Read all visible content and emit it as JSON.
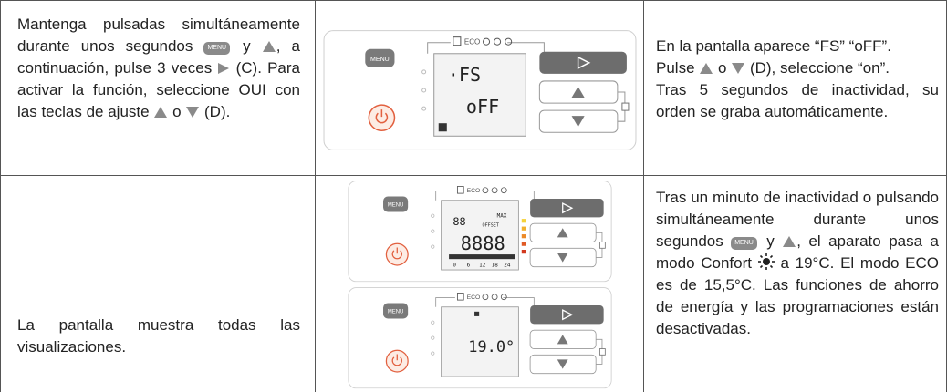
{
  "menu_label": "MENU",
  "eco_label": "ECO",
  "rows": [
    {
      "instruction": [
        "Mantenga pulsadas simultánea­mente durante unos segundos",
        "y",
        ", a continuación, pulse 3 veces",
        "(C). Para activar la función, seleccione OUI con las teclas de ajuste",
        "o",
        "(D)."
      ],
      "displays": [
        [
          "·FS",
          "oFF"
        ]
      ],
      "description": [
        [
          "En la pantalla aparece “FS” “oFF”."
        ],
        [
          "Pulse",
          "o",
          "(D), seleccione “on”."
        ],
        [
          "Tras 5 segundos de inactividad, su orden se graba automáticamente."
        ]
      ]
    },
    {
      "instruction": [
        "La pantalla muestra todas las visualizaciones."
      ],
      "displays": [
        [
          "88",
          "MAX",
          "OFFSET",
          "8888",
          "0",
          "6",
          "12",
          "18",
          "24"
        ],
        [
          "19.0°"
        ]
      ],
      "description": [
        [
          "Tras un minuto de inactividad o pulsando simultáneamente durante unos segundos",
          "y",
          ", el aparato pasa a modo Confort",
          "a 19°C. El modo ECO es de 15,5°C. Las funciones de ahorro de energía y las programaciones están desactivadas."
        ]
      ]
    }
  ]
}
